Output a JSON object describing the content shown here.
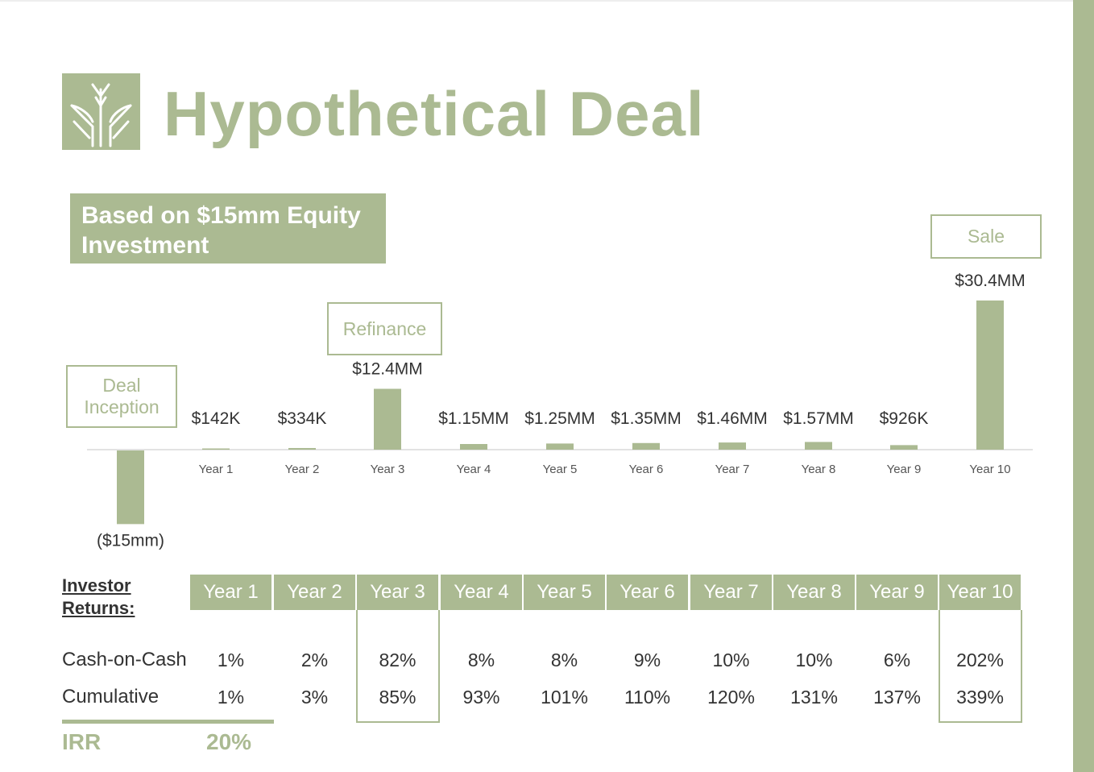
{
  "title": "Hypothetical Deal",
  "subtitle": [
    "Based on $15mm Equity",
    "Investment"
  ],
  "logo": {
    "icon": "wheat-sprout-icon"
  },
  "callouts": {
    "deal_inception": [
      "Deal",
      "Inception"
    ],
    "refinance": "Refinance",
    "sale": "Sale"
  },
  "colors": {
    "accent": "#abba92",
    "text": "#333333",
    "axis": "#d9d9d9"
  },
  "chart_data": {
    "type": "bar",
    "title": "",
    "categories": [
      "",
      "Year 1",
      "Year 2",
      "Year 3",
      "Year 4",
      "Year 5",
      "Year 6",
      "Year 7",
      "Year 8",
      "Year 9",
      "Year 10"
    ],
    "values": [
      -15,
      0.142,
      0.334,
      12.4,
      1.15,
      1.25,
      1.35,
      1.46,
      1.57,
      0.926,
      30.4
    ],
    "data_labels": [
      "($15mm)",
      "$142K",
      "$334K",
      "$12.4MM",
      "$1.15MM",
      "$1.25MM",
      "$1.35MM",
      "$1.46MM",
      "$1.57MM",
      "$926K",
      "$30.4MM"
    ],
    "units": "$MM",
    "ylim": [
      -15,
      30.4
    ],
    "grid": false,
    "legend": "none"
  },
  "returns": {
    "section_label": [
      "Investor",
      "Returns:"
    ],
    "years": [
      "Year 1",
      "Year 2",
      "Year 3",
      "Year 4",
      "Year 5",
      "Year 6",
      "Year 7",
      "Year 8",
      "Year 9",
      "Year 10"
    ],
    "rows": [
      {
        "label": "Cash-on-Cash",
        "values": [
          "1%",
          "2%",
          "82%",
          "8%",
          "8%",
          "9%",
          "10%",
          "10%",
          "6%",
          "202%"
        ]
      },
      {
        "label": "Cumulative",
        "values": [
          "1%",
          "3%",
          "85%",
          "93%",
          "101%",
          "110%",
          "120%",
          "131%",
          "137%",
          "339%"
        ]
      }
    ],
    "irr_label": "IRR",
    "irr_value": "20%"
  }
}
